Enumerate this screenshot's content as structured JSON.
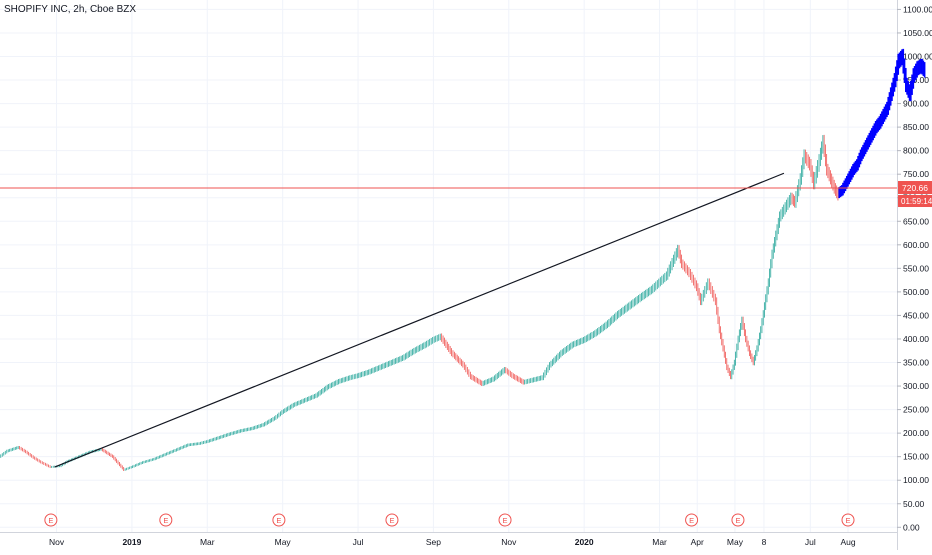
{
  "header": {
    "title": "SHOPIFY INC, 2h, Cboe BZX"
  },
  "chart_data": {
    "type": "candlestick",
    "title": "SHOPIFY INC, 2h, Cboe BZX",
    "ylim": [
      -10,
      1120
    ],
    "y_ticks": [
      "1100.00",
      "1050.00",
      "1000.00",
      "950.00",
      "900.00",
      "850.00",
      "800.00",
      "750.00",
      "700.00",
      "650.00",
      "600.00",
      "550.00",
      "500.00",
      "450.00",
      "400.00",
      "350.00",
      "300.00",
      "250.00",
      "200.00",
      "150.00",
      "100.00",
      "50.00",
      "0.00"
    ],
    "y_tick_values": [
      1100,
      1050,
      1000,
      950,
      900,
      850,
      800,
      750,
      700,
      650,
      600,
      550,
      500,
      450,
      400,
      350,
      300,
      250,
      200,
      150,
      100,
      50,
      0
    ],
    "x_ticks": [
      "Nov",
      "2019",
      "Mar",
      "May",
      "Jul",
      "Sep",
      "Nov",
      "2020",
      "Mar",
      "Apr",
      "May",
      "8",
      "Jul",
      "Aug"
    ],
    "x_tick_t": [
      0.0,
      2.0,
      4.0,
      6.0,
      8.0,
      10.0,
      12.0,
      14.0,
      16.0,
      17.0,
      18.0,
      18.77,
      20.0,
      21.0
    ],
    "x_range_t": [
      -1.5,
      22.3
    ],
    "grid": true,
    "legend": "none",
    "price_line": {
      "value": 720.66,
      "label": "720.66",
      "countdown": "01:59:14",
      "color": "#ef5350"
    },
    "trendline": {
      "start": {
        "t": -0.05,
        "value": 128
      },
      "end": {
        "t": 19.3,
        "value": 752
      },
      "color": "#131722"
    },
    "earnings_events": [
      {
        "t": -0.15,
        "label": "E"
      },
      {
        "t": 2.9,
        "label": "E"
      },
      {
        "t": 5.9,
        "label": "E"
      },
      {
        "t": 8.9,
        "label": "E"
      },
      {
        "t": 11.9,
        "label": "E"
      },
      {
        "t": 16.85,
        "label": "E"
      },
      {
        "t": 18.08,
        "label": "E"
      },
      {
        "t": 21.0,
        "label": "E"
      }
    ],
    "series": [
      {
        "name": "",
        "color": "mixed",
        "points": [
          [
            -1.5,
            150
          ],
          [
            -1.3,
            162
          ],
          [
            -1.0,
            170
          ],
          [
            -0.8,
            160
          ],
          [
            -0.6,
            148
          ],
          [
            -0.4,
            138
          ],
          [
            -0.15,
            128
          ],
          [
            0.1,
            130
          ],
          [
            0.3,
            140
          ],
          [
            0.6,
            150
          ],
          [
            0.9,
            160
          ],
          [
            1.2,
            166
          ],
          [
            1.5,
            150
          ],
          [
            1.8,
            122
          ],
          [
            2.0,
            128
          ],
          [
            2.3,
            138
          ],
          [
            2.6,
            145
          ],
          [
            2.9,
            155
          ],
          [
            3.2,
            165
          ],
          [
            3.5,
            175
          ],
          [
            3.8,
            178
          ],
          [
            4.0,
            182
          ],
          [
            4.3,
            190
          ],
          [
            4.6,
            198
          ],
          [
            4.9,
            205
          ],
          [
            5.2,
            210
          ],
          [
            5.5,
            218
          ],
          [
            5.8,
            232
          ],
          [
            6.0,
            245
          ],
          [
            6.3,
            260
          ],
          [
            6.6,
            270
          ],
          [
            6.9,
            280
          ],
          [
            7.2,
            298
          ],
          [
            7.5,
            310
          ],
          [
            7.8,
            318
          ],
          [
            8.0,
            322
          ],
          [
            8.3,
            330
          ],
          [
            8.6,
            340
          ],
          [
            8.9,
            350
          ],
          [
            9.2,
            360
          ],
          [
            9.5,
            375
          ],
          [
            9.8,
            388
          ],
          [
            10.0,
            398
          ],
          [
            10.2,
            405
          ],
          [
            10.5,
            370
          ],
          [
            10.8,
            345
          ],
          [
            11.0,
            320
          ],
          [
            11.3,
            305
          ],
          [
            11.6,
            315
          ],
          [
            11.9,
            335
          ],
          [
            12.1,
            322
          ],
          [
            12.4,
            308
          ],
          [
            12.6,
            312
          ],
          [
            12.9,
            318
          ],
          [
            13.1,
            345
          ],
          [
            13.4,
            370
          ],
          [
            13.7,
            388
          ],
          [
            14.0,
            398
          ],
          [
            14.3,
            412
          ],
          [
            14.6,
            430
          ],
          [
            14.9,
            452
          ],
          [
            15.2,
            470
          ],
          [
            15.5,
            488
          ],
          [
            15.8,
            505
          ],
          [
            16.0,
            520
          ],
          [
            16.2,
            535
          ],
          [
            16.5,
            590
          ],
          [
            16.6,
            560
          ],
          [
            16.8,
            540
          ],
          [
            17.0,
            510
          ],
          [
            17.1,
            480
          ],
          [
            17.3,
            520
          ],
          [
            17.5,
            480
          ],
          [
            17.6,
            420
          ],
          [
            17.7,
            380
          ],
          [
            17.8,
            340
          ],
          [
            17.9,
            320
          ],
          [
            18.0,
            350
          ],
          [
            18.1,
            400
          ],
          [
            18.2,
            440
          ],
          [
            18.3,
            400
          ],
          [
            18.4,
            370
          ],
          [
            18.5,
            350
          ],
          [
            18.6,
            380
          ],
          [
            18.7,
            420
          ],
          [
            18.8,
            470
          ],
          [
            18.9,
            520
          ],
          [
            19.0,
            580
          ],
          [
            19.1,
            620
          ],
          [
            19.2,
            660
          ],
          [
            19.35,
            680
          ],
          [
            19.5,
            700
          ],
          [
            19.6,
            690
          ],
          [
            19.75,
            740
          ],
          [
            19.85,
            790
          ],
          [
            20.0,
            770
          ],
          [
            20.1,
            730
          ],
          [
            20.25,
            780
          ],
          [
            20.35,
            820
          ],
          [
            20.45,
            760
          ],
          [
            20.55,
            740
          ],
          [
            20.65,
            720
          ],
          [
            20.75,
            705
          ]
        ]
      },
      {
        "name": "",
        "color": "#0000ff",
        "points": [
          [
            20.75,
            710
          ],
          [
            20.85,
            716
          ],
          [
            20.95,
            730
          ],
          [
            21.05,
            745
          ],
          [
            21.15,
            760
          ],
          [
            21.25,
            770
          ],
          [
            21.35,
            790
          ],
          [
            21.45,
            805
          ],
          [
            21.55,
            820
          ],
          [
            21.65,
            835
          ],
          [
            21.75,
            850
          ],
          [
            21.85,
            860
          ],
          [
            21.95,
            875
          ],
          [
            22.05,
            890
          ],
          [
            22.15,
            920
          ],
          [
            22.25,
            950
          ],
          [
            22.35,
            990
          ],
          [
            22.45,
            1000
          ],
          [
            22.55,
            940
          ],
          [
            22.65,
            920
          ],
          [
            22.75,
            960
          ],
          [
            22.85,
            975
          ],
          [
            22.95,
            980
          ],
          [
            23.05,
            970
          ]
        ]
      }
    ]
  }
}
